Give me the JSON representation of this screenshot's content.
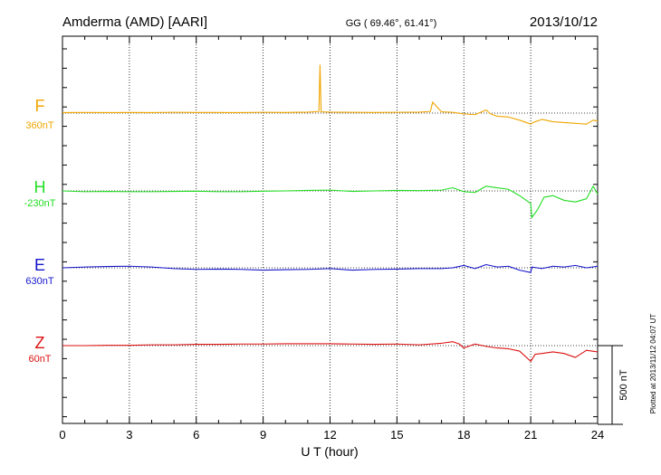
{
  "header": {
    "station": "Amderma (AMD)  [AARI]",
    "coords": "GG ( 69.46°,  61.41°)",
    "date": "2013/10/12"
  },
  "footer": {
    "plotted": "Plotted at 2013/11/12 04:07 UT"
  },
  "chart_data": {
    "type": "line",
    "xlabel": "U T (hour)",
    "xlim": [
      0,
      24
    ],
    "xticks": [
      "0",
      "3",
      "6",
      "9",
      "12",
      "15",
      "18",
      "21",
      "24"
    ],
    "scale_bar": {
      "label": "500 nT",
      "value_nT": 500
    },
    "grid": "vertical dotted at every 3 hours",
    "series": [
      {
        "name": "F",
        "baseline_label": "360nT",
        "color": "#f0a500",
        "x": [
          0,
          1,
          2,
          3,
          4,
          5,
          6,
          7,
          8,
          9,
          10,
          11,
          11.5,
          11.55,
          11.6,
          12,
          13,
          14,
          15,
          16,
          16.5,
          16.6,
          17,
          17.5,
          18,
          18.5,
          19,
          19.2,
          19.5,
          20,
          20.5,
          21,
          21.1,
          21.5,
          22,
          22.5,
          23,
          23.5,
          23.8,
          24
        ],
        "values": [
          3,
          4,
          3,
          4,
          3,
          5,
          4,
          4,
          3,
          5,
          4,
          6,
          10,
          305,
          8,
          6,
          5,
          4,
          5,
          6,
          10,
          70,
          8,
          5,
          -5,
          -10,
          20,
          -5,
          -20,
          -25,
          -45,
          -70,
          -60,
          -40,
          -55,
          -60,
          -65,
          -70,
          -45,
          -50
        ]
      },
      {
        "name": "H",
        "baseline_label": "-230nT",
        "color": "#22dd22",
        "x": [
          0,
          1,
          2,
          3,
          4,
          5,
          6,
          7,
          8,
          9,
          10,
          11,
          12,
          13,
          14,
          15,
          16,
          17,
          17.5,
          18,
          18.5,
          19,
          19.5,
          20,
          20.5,
          21,
          21.05,
          21.3,
          21.6,
          22,
          22.5,
          23,
          23.5,
          23.8,
          24
        ],
        "values": [
          0,
          -5,
          -3,
          -5,
          -5,
          -3,
          -2,
          -5,
          -5,
          -2,
          0,
          3,
          5,
          -3,
          0,
          3,
          2,
          5,
          20,
          -5,
          -10,
          30,
          20,
          10,
          -30,
          -80,
          -170,
          -120,
          -40,
          -30,
          -60,
          -70,
          -50,
          30,
          -20
        ]
      },
      {
        "name": "E",
        "baseline_label": "630nT",
        "color": "#1515cc",
        "x": [
          0,
          1,
          2,
          3,
          4,
          5,
          6,
          7,
          8,
          9,
          10,
          11,
          12,
          13,
          14,
          15,
          16,
          17,
          17.5,
          18,
          18.5,
          19,
          19.5,
          20,
          20.5,
          21,
          21.05,
          21.5,
          22,
          22.5,
          23,
          23.5,
          24
        ],
        "values": [
          0,
          5,
          8,
          10,
          5,
          -5,
          -10,
          -8,
          -10,
          -15,
          -12,
          -10,
          -5,
          -15,
          -10,
          -8,
          -5,
          -5,
          0,
          15,
          -5,
          20,
          5,
          10,
          -15,
          -30,
          5,
          -5,
          10,
          5,
          15,
          0,
          10
        ]
      },
      {
        "name": "Z",
        "baseline_label": "60nT",
        "color": "#dd1111",
        "x": [
          0,
          1,
          2,
          3,
          4,
          5,
          6,
          7,
          8,
          9,
          10,
          11,
          12,
          13,
          14,
          15,
          16,
          17,
          17.5,
          17.8,
          18,
          18.5,
          19,
          19.5,
          20,
          20.5,
          21,
          21.2,
          21.5,
          22,
          22.5,
          23,
          23.5,
          24
        ],
        "values": [
          0,
          0,
          2,
          2,
          5,
          5,
          8,
          8,
          10,
          10,
          12,
          12,
          12,
          10,
          8,
          10,
          5,
          15,
          25,
          10,
          -15,
          10,
          -5,
          -15,
          -20,
          -35,
          -100,
          -55,
          -50,
          -40,
          -50,
          -75,
          -30,
          -40
        ]
      }
    ]
  }
}
